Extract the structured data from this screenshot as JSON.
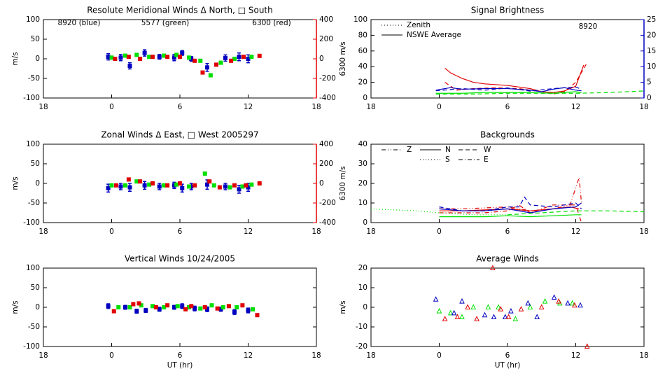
{
  "chart_data": [
    {
      "type": "scatter",
      "title": "Resolute Meridional Winds Δ North, □ South",
      "ylabel": "m/s",
      "y2label": "6300 m/s",
      "y2color": "#e00000",
      "xlim": [
        -6,
        18
      ],
      "xticks": [
        {
          "value": -6,
          "label": "18"
        },
        0,
        6,
        12,
        18
      ],
      "ylim": [
        -100,
        100
      ],
      "yticks": [
        -100,
        -50,
        0,
        50,
        100
      ],
      "y2lim": [
        -400,
        400
      ],
      "y2ticks": [
        -400,
        -200,
        0,
        200,
        400
      ],
      "annotations": [
        {
          "text": "8920 (blue)",
          "color": "#0000c0"
        },
        {
          "text": "5577 (green)",
          "color": "#00e000"
        },
        {
          "text": "6300 (red)",
          "color": "#e00000"
        }
      ],
      "series": [
        {
          "color": "#0000c0",
          "marker": "square",
          "x": [
            -0.3,
            0.8,
            1.6,
            2.9,
            4.2,
            5.5,
            6.2,
            7.0,
            8.4,
            10.0,
            11.2,
            12.0
          ],
          "values": [
            5,
            3,
            -18,
            15,
            5,
            3,
            15,
            0,
            -22,
            2,
            5,
            0
          ],
          "errors": [
            8,
            8,
            8,
            8,
            6,
            8,
            6,
            6,
            10,
            8,
            10,
            10
          ]
        },
        {
          "color": "#00e000",
          "marker": "square",
          "x": [
            0.0,
            1.2,
            2.2,
            3.3,
            4.6,
            5.7,
            6.8,
            7.8,
            8.7,
            9.6,
            10.8,
            12.3
          ],
          "values": [
            3,
            8,
            10,
            5,
            8,
            10,
            3,
            -5,
            -42,
            -10,
            0,
            5
          ]
        },
        {
          "color": "#e00000",
          "marker": "square",
          "axis": "y2",
          "x": [
            0.3,
            1.5,
            2.5,
            3.6,
            4.9,
            6.0,
            7.3,
            8.0,
            9.2,
            10.5,
            11.6,
            13.0
          ],
          "values": [
            0,
            20,
            0,
            20,
            20,
            20,
            -20,
            -140,
            -60,
            -20,
            20,
            30
          ]
        }
      ]
    },
    {
      "type": "line",
      "title": "Signal Brightness",
      "y2color": "#0000c0",
      "xlim": [
        -6,
        18
      ],
      "xticks": [
        {
          "value": -6,
          "label": "18"
        },
        0,
        6,
        12,
        18
      ],
      "ylim": [
        0,
        100
      ],
      "yticks": [
        0,
        20,
        40,
        60,
        80,
        100
      ],
      "y2lim": [
        0,
        25
      ],
      "y2ticks": [
        0,
        5,
        10,
        15,
        20,
        25
      ],
      "annotations": [
        {
          "text": "8920",
          "color": "#0000c0"
        }
      ],
      "legend": [
        {
          "label": "Zenith",
          "style": "dotted"
        },
        {
          "label": "NSWE Average",
          "style": "solid"
        }
      ],
      "series": [
        {
          "color": "#e00000",
          "style": "solid",
          "x": [
            0.5,
            1,
            2,
            3,
            4,
            5,
            6,
            7,
            8,
            9,
            10,
            11,
            12,
            12.7
          ],
          "values": [
            38,
            32,
            25,
            20,
            18,
            17,
            16,
            14,
            12,
            8,
            7,
            9,
            15,
            42
          ]
        },
        {
          "color": "#e00000",
          "style": "dashed",
          "x": [
            0.5,
            1.5,
            3,
            5,
            7,
            9,
            10,
            11,
            12,
            13
          ],
          "values": [
            20,
            10,
            12,
            13,
            12,
            8,
            5,
            8,
            20,
            45
          ]
        },
        {
          "color": "#0000c0",
          "style": "solid",
          "axis": "y2",
          "x": [
            -0.3,
            1,
            2,
            4,
            6,
            8,
            9,
            10,
            11,
            12,
            12.5
          ],
          "values": [
            2.5,
            3.3,
            2.8,
            3,
            3,
            2.5,
            2,
            2.8,
            3.3,
            2.5,
            2.3
          ]
        },
        {
          "color": "#0000c0",
          "style": "dashed",
          "axis": "y2",
          "x": [
            -0.3,
            2,
            4,
            6,
            8,
            10,
            12,
            12.5
          ],
          "values": [
            2.3,
            3,
            2.5,
            3.2,
            2.2,
            3,
            3.5,
            2.8
          ]
        },
        {
          "color": "#00e000",
          "style": "solid",
          "x": [
            -0.3,
            2,
            4,
            6,
            8,
            10,
            12,
            12.5
          ],
          "values": [
            6,
            6,
            7,
            7,
            7,
            6,
            8,
            7
          ]
        },
        {
          "color": "#00e000",
          "style": "dashed",
          "x": [
            -0.3,
            3,
            6,
            9,
            12,
            15,
            18
          ],
          "values": [
            5,
            5,
            6,
            6,
            6,
            7,
            9
          ]
        }
      ]
    },
    {
      "type": "scatter",
      "title": "Zonal Winds Δ East, □ West 2005297",
      "ylabel": "m/s",
      "y2label": "6300 m/s",
      "y2color": "#e00000",
      "xlim": [
        -6,
        18
      ],
      "xticks": [
        {
          "value": -6,
          "label": "18"
        },
        0,
        6,
        12,
        18
      ],
      "ylim": [
        -100,
        100
      ],
      "yticks": [
        -100,
        -50,
        0,
        50,
        100
      ],
      "y2lim": [
        -400,
        400
      ],
      "y2ticks": [
        -400,
        -200,
        0,
        200,
        400
      ],
      "series": [
        {
          "color": "#0000c0",
          "marker": "square",
          "x": [
            -0.3,
            0.8,
            1.6,
            2.9,
            4.2,
            5.5,
            6.2,
            7.0,
            8.4,
            10.0,
            11.2,
            12.0
          ],
          "values": [
            -12,
            -8,
            -10,
            -5,
            -8,
            -5,
            -12,
            -8,
            -3,
            -8,
            -15,
            -10
          ],
          "errors": [
            10,
            8,
            10,
            10,
            8,
            8,
            10,
            8,
            12,
            8,
            10,
            10
          ]
        },
        {
          "color": "#00e000",
          "marker": "square",
          "x": [
            0,
            1.2,
            2.2,
            3.3,
            4.6,
            5.7,
            6.8,
            8.2,
            9.0,
            10.4,
            11.5,
            12.3
          ],
          "values": [
            -5,
            -5,
            5,
            -3,
            -5,
            -3,
            -8,
            25,
            -5,
            -10,
            -8,
            -3
          ]
        },
        {
          "color": "#e00000",
          "marker": "square",
          "axis": "y2",
          "x": [
            0.4,
            1.5,
            2.5,
            3.6,
            4.9,
            6.0,
            7.3,
            8.6,
            9.5,
            10.8,
            11.8,
            13.0
          ],
          "values": [
            -20,
            40,
            20,
            0,
            -20,
            0,
            -20,
            20,
            -40,
            -20,
            -20,
            0
          ]
        }
      ]
    },
    {
      "type": "line",
      "title": "Backgrounds",
      "xlim": [
        -6,
        18
      ],
      "xticks": [
        {
          "value": -6,
          "label": "18"
        },
        0,
        6,
        12,
        18
      ],
      "ylim": [
        0,
        40
      ],
      "yticks": [
        0,
        10,
        20,
        30,
        40
      ],
      "legend": [
        {
          "label": "Z",
          "style": "dashdotdot"
        },
        {
          "label": "N",
          "style": "solid"
        },
        {
          "label": "W",
          "style": "dashed"
        },
        {
          "label": "S",
          "style": "dotted"
        },
        {
          "label": "E",
          "style": "dashdot"
        }
      ],
      "series": [
        {
          "color": "#e00000",
          "style": "solid",
          "x": [
            0,
            2,
            4,
            6,
            8,
            10,
            11.5,
            12.3
          ],
          "values": [
            6,
            6,
            6.5,
            7,
            6,
            7,
            8,
            7
          ]
        },
        {
          "color": "#e00000",
          "style": "dashdotdot",
          "x": [
            0,
            2,
            4,
            6,
            8,
            10,
            11.5,
            12.3,
            12.5
          ],
          "values": [
            7,
            7,
            7.5,
            8,
            6,
            7,
            9,
            23,
            10
          ]
        },
        {
          "color": "#e00000",
          "style": "dashdot",
          "x": [
            0,
            2,
            4,
            6,
            7,
            8,
            10,
            12,
            12.5
          ],
          "values": [
            5,
            5,
            5,
            6,
            9,
            5,
            9,
            9,
            0
          ]
        },
        {
          "color": "#0000c0",
          "style": "solid",
          "x": [
            0,
            2,
            4,
            6,
            8,
            10,
            12,
            12.5
          ],
          "values": [
            7,
            6,
            6,
            7,
            5,
            7,
            8,
            10
          ]
        },
        {
          "color": "#0000c0",
          "style": "dashed",
          "x": [
            0,
            2,
            4,
            6,
            7,
            7.5,
            8,
            10,
            12,
            12.5
          ],
          "values": [
            8,
            6,
            6,
            8,
            8,
            13,
            9,
            8,
            10,
            7
          ]
        },
        {
          "color": "#00e000",
          "style": "dotted",
          "x": [
            -6,
            -2,
            0,
            3,
            6
          ],
          "values": [
            7,
            6,
            5,
            4,
            4
          ]
        },
        {
          "color": "#00e000",
          "style": "solid",
          "x": [
            0,
            2,
            4,
            6,
            8,
            10,
            12,
            12.5
          ],
          "values": [
            3,
            3,
            3,
            3.5,
            3,
            3.5,
            4,
            4
          ]
        },
        {
          "color": "#00e000",
          "style": "dashed",
          "x": [
            6,
            9,
            12,
            15,
            18
          ],
          "values": [
            4,
            5,
            6,
            6,
            5.5
          ]
        }
      ]
    },
    {
      "type": "scatter",
      "title": "Vertical Winds 10/24/2005",
      "ylabel": "m/s",
      "xlabel": "UT (hr)",
      "xlim": [
        -6,
        18
      ],
      "xticks": [
        {
          "value": -6,
          "label": "18"
        },
        0,
        6,
        12,
        18
      ],
      "ylim": [
        -100,
        100
      ],
      "yticks": [
        -100,
        -50,
        0,
        50,
        100
      ],
      "series": [
        {
          "color": "#0000c0",
          "marker": "square",
          "x": [
            -0.3,
            1.2,
            2.2,
            3.0,
            4.2,
            5.5,
            6.2,
            7.3,
            8.4,
            9.6,
            10.8,
            12.0
          ],
          "values": [
            3,
            0,
            -10,
            -8,
            -5,
            0,
            3,
            -3,
            -5,
            -5,
            -12,
            -8
          ],
          "errors": [
            6,
            5,
            5,
            5,
            5,
            5,
            6,
            6,
            6,
            5,
            6,
            6
          ]
        },
        {
          "color": "#00e000",
          "marker": "square",
          "x": [
            0.6,
            1.6,
            2.6,
            3.6,
            4.6,
            5.8,
            6.8,
            7.8,
            8.8,
            9.8,
            11.0,
            12.4
          ],
          "values": [
            0,
            0,
            5,
            3,
            0,
            3,
            0,
            -3,
            5,
            0,
            0,
            -5
          ]
        },
        {
          "color": "#e00000",
          "marker": "square",
          "x": [
            0.2,
            1.9,
            2.4,
            3.9,
            4.9,
            6.5,
            7.0,
            8.2,
            9.3,
            10.3,
            11.5,
            12.8
          ],
          "values": [
            -10,
            8,
            10,
            0,
            5,
            -5,
            3,
            0,
            -3,
            3,
            5,
            -20
          ]
        }
      ]
    },
    {
      "type": "scatter",
      "title": "Average Winds",
      "ylabel": "m/s",
      "xlabel": "UT (hr)",
      "xlim": [
        -6,
        18
      ],
      "xticks": [
        {
          "value": -6,
          "label": "18"
        },
        0,
        6,
        12,
        18
      ],
      "ylim": [
        -20,
        20
      ],
      "yticks": [
        -20,
        -10,
        0,
        10,
        20
      ],
      "series": [
        {
          "color": "#00e000",
          "marker": "triangle",
          "x": [
            0,
            1,
            2,
            3,
            4.3,
            5.2,
            6.7,
            8.0,
            9.3,
            10.6,
            11.7
          ],
          "values": [
            -2,
            -3,
            -5,
            0,
            0,
            0,
            -6,
            0,
            3,
            2,
            2
          ]
        },
        {
          "color": "#0000c0",
          "marker": "triangle",
          "x": [
            -0.3,
            1.3,
            2.0,
            4.0,
            4.8,
            5.8,
            6.3,
            7.8,
            8.6,
            10.1,
            11.3,
            12.4
          ],
          "values": [
            4,
            -3,
            3,
            -4,
            -5,
            -5,
            -2,
            2,
            -5,
            5,
            2,
            1
          ]
        },
        {
          "color": "#e00000",
          "marker": "triangle",
          "x": [
            0.5,
            1.6,
            2.5,
            3.3,
            4.7,
            5.4,
            6.1,
            7.2,
            9.0,
            10.5,
            11.9,
            13.0
          ],
          "values": [
            -6,
            -5,
            0,
            -6,
            20,
            -1,
            -5,
            -1,
            0,
            3,
            1,
            -20
          ]
        }
      ]
    }
  ]
}
